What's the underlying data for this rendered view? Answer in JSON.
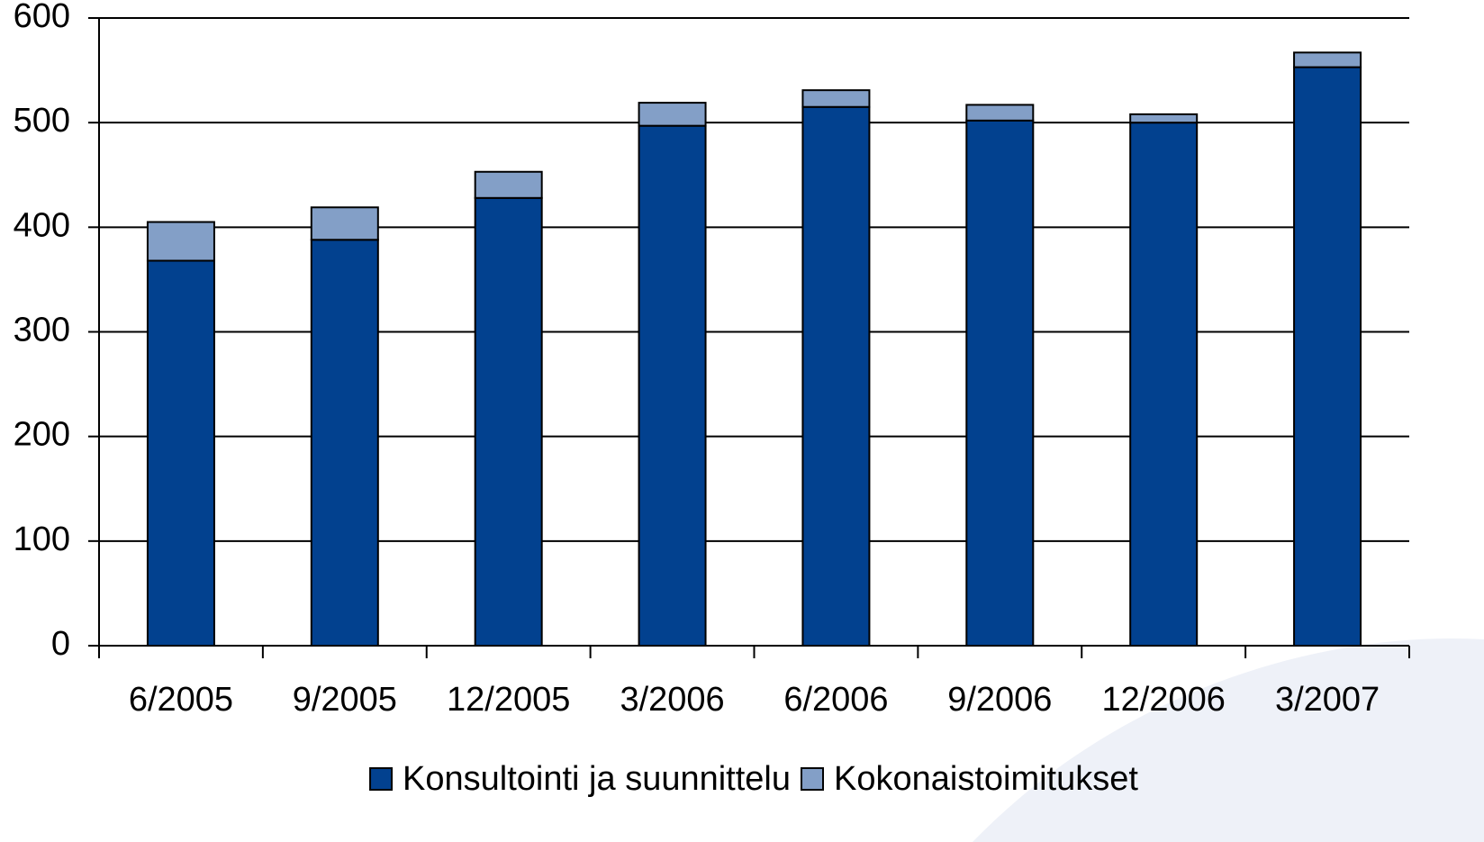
{
  "chart_data": {
    "type": "stacked_bar",
    "categories": [
      "6/2005",
      "9/2005",
      "12/2005",
      "3/2006",
      "6/2006",
      "9/2006",
      "12/2006",
      "3/2007"
    ],
    "series": [
      {
        "name": "Konsultointi ja suunnittelu",
        "color": "#02418f",
        "values": [
          368,
          388,
          428,
          497,
          515,
          502,
          500,
          553
        ]
      },
      {
        "name": "Kokonaistoimitukset",
        "color": "#839fc7",
        "values": [
          37,
          31,
          25,
          22,
          16,
          15,
          8,
          14
        ]
      }
    ],
    "ylim": [
      0,
      600
    ],
    "yticks": [
      0,
      100,
      200,
      300,
      400,
      500,
      600
    ],
    "grid": true,
    "legend": "bottom"
  }
}
